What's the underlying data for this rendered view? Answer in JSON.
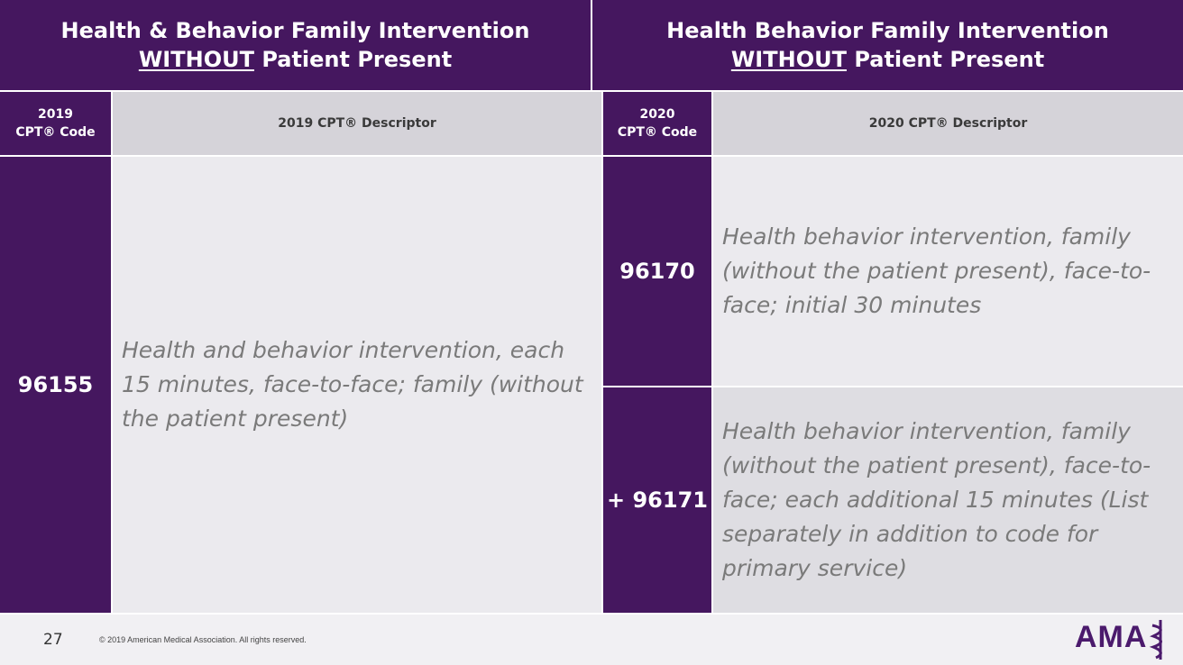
{
  "header": {
    "left": {
      "title": "Health & Behavior Family Intervention",
      "emphasis": "WITHOUT",
      "rest": "Patient Present"
    },
    "right": {
      "title": "Health Behavior Family Intervention",
      "emphasis": "WITHOUT",
      "rest": "Patient Present"
    }
  },
  "table": {
    "columns": [
      "2019\nCPT® Code",
      "2019 CPT® Descriptor",
      "2020\nCPT® Code",
      "2020 CPT® Descriptor"
    ],
    "old": {
      "code": "96155",
      "descriptor": "Health and behavior intervention, each 15 minutes, face-to-face; family (without the patient present)"
    },
    "new": [
      {
        "code": "96170",
        "descriptor": "Health behavior intervention, family (without the patient present), face-to-face; initial 30 minutes"
      },
      {
        "code": "+ 96171",
        "descriptor": "Health behavior intervention, family (without the patient present), face-to-face; each additional 15 minutes (List separately in addition to code for primary service)"
      }
    ]
  },
  "footer": {
    "page": "27",
    "copyright": "© 2019 American Medical Association. All rights reserved.",
    "logo": "AMA"
  }
}
